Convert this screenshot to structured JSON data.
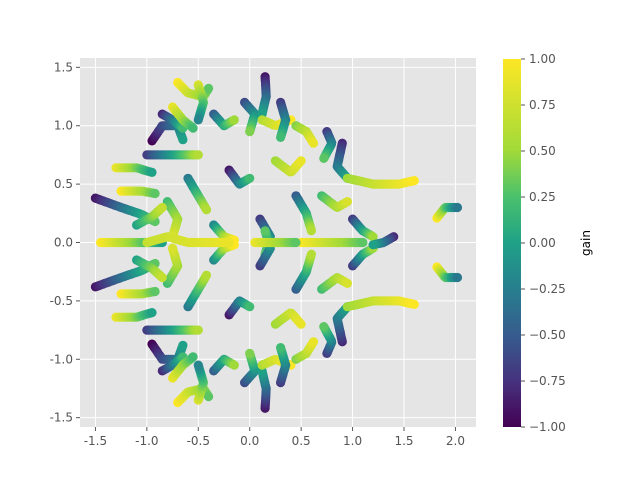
{
  "chart_data": {
    "type": "scatter",
    "title": "",
    "xlabel": "",
    "ylabel": "",
    "xlim": [
      -1.65,
      2.2
    ],
    "ylim": [
      -1.58,
      1.58
    ],
    "grid": true,
    "style": "ggplot",
    "x_ticks": [
      -1.5,
      -1.0,
      -0.5,
      0.0,
      0.5,
      1.0,
      1.5,
      2.0
    ],
    "y_ticks": [
      -1.5,
      -1.0,
      -0.5,
      0.0,
      0.5,
      1.0,
      1.5
    ],
    "colorbar": {
      "label": "gain",
      "range": [
        -1.0,
        1.0
      ],
      "ticks": [
        -1.0,
        -0.75,
        -0.5,
        -0.25,
        0.0,
        0.25,
        0.5,
        0.75,
        1.0
      ],
      "colormap": "viridis"
    },
    "description": "Many short curved strokes of densely packed points; colour encodes gain from -1.00 (dark purple) to 1.00 (yellow).",
    "strokes": [
      {
        "points": [
          [
            -1.5,
            0.38
          ],
          [
            -1.25,
            0.3
          ],
          [
            -1.05,
            0.24
          ],
          [
            -0.92,
            0.18
          ]
        ],
        "gain": [
          -0.9,
          0.3
        ]
      },
      {
        "points": [
          [
            -1.5,
            -0.38
          ],
          [
            -1.25,
            -0.3
          ],
          [
            -1.05,
            -0.24
          ],
          [
            -0.92,
            -0.18
          ]
        ],
        "gain": [
          -0.9,
          0.3
        ]
      },
      {
        "points": [
          [
            -1.45,
            0.0
          ],
          [
            -1.2,
            0.0
          ],
          [
            -1.0,
            0.0
          ],
          [
            -0.85,
            0.0
          ]
        ],
        "gain": [
          1.0,
          0.0
        ]
      },
      {
        "points": [
          [
            -1.3,
            0.64
          ],
          [
            -1.1,
            0.64
          ],
          [
            -0.95,
            0.6
          ]
        ],
        "gain": [
          0.9,
          0.0
        ]
      },
      {
        "points": [
          [
            -1.3,
            -0.64
          ],
          [
            -1.1,
            -0.64
          ],
          [
            -0.95,
            -0.6
          ]
        ],
        "gain": [
          0.9,
          0.0
        ]
      },
      {
        "points": [
          [
            -1.25,
            0.44
          ],
          [
            -1.05,
            0.44
          ],
          [
            -0.92,
            0.42
          ]
        ],
        "gain": [
          1.0,
          0.3
        ]
      },
      {
        "points": [
          [
            -1.25,
            -0.44
          ],
          [
            -1.05,
            -0.44
          ],
          [
            -0.92,
            -0.42
          ]
        ],
        "gain": [
          1.0,
          0.3
        ]
      },
      {
        "points": [
          [
            -1.0,
            0.75
          ],
          [
            -0.75,
            0.75
          ],
          [
            -0.5,
            0.75
          ]
        ],
        "gain": [
          -0.7,
          0.6
        ]
      },
      {
        "points": [
          [
            -1.0,
            -0.75
          ],
          [
            -0.75,
            -0.75
          ],
          [
            -0.5,
            -0.75
          ]
        ],
        "gain": [
          -0.7,
          0.6
        ]
      },
      {
        "points": [
          [
            -0.95,
            0.87
          ],
          [
            -0.85,
            1.0
          ],
          [
            -0.7,
            1.0
          ],
          [
            -0.65,
            0.88
          ]
        ],
        "gain": [
          -1.0,
          0.0
        ]
      },
      {
        "points": [
          [
            -0.95,
            -0.87
          ],
          [
            -0.85,
            -1.0
          ],
          [
            -0.7,
            -1.0
          ],
          [
            -0.65,
            -0.88
          ]
        ],
        "gain": [
          -1.0,
          0.0
        ]
      },
      {
        "points": [
          [
            -0.85,
            1.1
          ],
          [
            -0.75,
            1.05
          ],
          [
            -0.65,
            0.98
          ]
        ],
        "gain": [
          -0.8,
          0.2
        ]
      },
      {
        "points": [
          [
            -0.85,
            -1.1
          ],
          [
            -0.75,
            -1.05
          ],
          [
            -0.65,
            -0.98
          ]
        ],
        "gain": [
          -0.8,
          0.2
        ]
      },
      {
        "points": [
          [
            -0.7,
            1.37
          ],
          [
            -0.6,
            1.28
          ],
          [
            -0.45,
            1.25
          ],
          [
            -0.4,
            1.32
          ]
        ],
        "gain": [
          1.0,
          0.3
        ]
      },
      {
        "points": [
          [
            -0.7,
            -1.37
          ],
          [
            -0.6,
            -1.28
          ],
          [
            -0.45,
            -1.25
          ],
          [
            -0.4,
            -1.32
          ]
        ],
        "gain": [
          1.0,
          0.3
        ]
      },
      {
        "points": [
          [
            -0.75,
            1.16
          ],
          [
            -0.65,
            1.05
          ],
          [
            -0.55,
            0.98
          ]
        ],
        "gain": [
          0.9,
          0.2
        ]
      },
      {
        "points": [
          [
            -0.75,
            -1.16
          ],
          [
            -0.65,
            -1.05
          ],
          [
            -0.55,
            -0.98
          ]
        ],
        "gain": [
          0.9,
          0.2
        ]
      },
      {
        "points": [
          [
            -0.5,
            1.35
          ],
          [
            -0.45,
            1.2
          ],
          [
            -0.5,
            1.05
          ]
        ],
        "gain": [
          0.8,
          -0.2
        ]
      },
      {
        "points": [
          [
            -0.5,
            -1.35
          ],
          [
            -0.45,
            -1.2
          ],
          [
            -0.5,
            -1.05
          ]
        ],
        "gain": [
          0.8,
          -0.2
        ]
      },
      {
        "points": [
          [
            -0.35,
            1.1
          ],
          [
            -0.25,
            1.0
          ],
          [
            -0.15,
            1.05
          ]
        ],
        "gain": [
          -0.5,
          0.5
        ]
      },
      {
        "points": [
          [
            -0.35,
            -1.1
          ],
          [
            -0.25,
            -1.0
          ],
          [
            -0.15,
            -1.05
          ]
        ],
        "gain": [
          -0.5,
          0.5
        ]
      },
      {
        "points": [
          [
            -0.05,
            1.2
          ],
          [
            0.05,
            1.1
          ],
          [
            0.0,
            0.95
          ]
        ],
        "gain": [
          -0.6,
          0.4
        ]
      },
      {
        "points": [
          [
            -0.05,
            -1.2
          ],
          [
            0.05,
            -1.1
          ],
          [
            0.0,
            -0.95
          ]
        ],
        "gain": [
          -0.6,
          0.4
        ]
      },
      {
        "points": [
          [
            0.15,
            1.42
          ],
          [
            0.16,
            1.25
          ],
          [
            0.12,
            1.1
          ]
        ],
        "gain": [
          -0.9,
          0.0
        ]
      },
      {
        "points": [
          [
            0.15,
            -1.42
          ],
          [
            0.16,
            -1.25
          ],
          [
            0.12,
            -1.1
          ]
        ],
        "gain": [
          -0.9,
          0.0
        ]
      },
      {
        "points": [
          [
            0.12,
            1.05
          ],
          [
            0.25,
            1.0
          ],
          [
            0.4,
            1.05
          ]
        ],
        "gain": [
          0.6,
          1.0
        ]
      },
      {
        "points": [
          [
            0.12,
            -1.05
          ],
          [
            0.25,
            -1.0
          ],
          [
            0.4,
            -1.05
          ]
        ],
        "gain": [
          0.6,
          1.0
        ]
      },
      {
        "points": [
          [
            0.3,
            1.2
          ],
          [
            0.35,
            1.05
          ],
          [
            0.3,
            0.9
          ]
        ],
        "gain": [
          -0.7,
          0.2
        ]
      },
      {
        "points": [
          [
            0.3,
            -1.2
          ],
          [
            0.35,
            -1.05
          ],
          [
            0.3,
            -0.9
          ]
        ],
        "gain": [
          -0.7,
          0.2
        ]
      },
      {
        "points": [
          [
            0.45,
            1.0
          ],
          [
            0.55,
            0.95
          ],
          [
            0.62,
            0.85
          ]
        ],
        "gain": [
          0.4,
          0.9
        ]
      },
      {
        "points": [
          [
            0.45,
            -1.0
          ],
          [
            0.55,
            -0.95
          ],
          [
            0.62,
            -0.85
          ]
        ],
        "gain": [
          0.4,
          0.9
        ]
      },
      {
        "points": [
          [
            0.75,
            0.95
          ],
          [
            0.8,
            0.85
          ],
          [
            0.72,
            0.72
          ]
        ],
        "gain": [
          -0.7,
          0.3
        ]
      },
      {
        "points": [
          [
            0.75,
            -0.95
          ],
          [
            0.8,
            -0.85
          ],
          [
            0.72,
            -0.72
          ]
        ],
        "gain": [
          -0.7,
          0.3
        ]
      },
      {
        "points": [
          [
            0.9,
            0.85
          ],
          [
            0.85,
            0.65
          ],
          [
            0.95,
            0.55
          ]
        ],
        "gain": [
          -0.8,
          0.0
        ]
      },
      {
        "points": [
          [
            0.9,
            -0.85
          ],
          [
            0.85,
            -0.65
          ],
          [
            0.95,
            -0.55
          ]
        ],
        "gain": [
          -0.8,
          0.0
        ]
      },
      {
        "points": [
          [
            0.95,
            0.55
          ],
          [
            1.2,
            0.5
          ],
          [
            1.45,
            0.5
          ],
          [
            1.6,
            0.53
          ]
        ],
        "gain": [
          0.5,
          1.0
        ]
      },
      {
        "points": [
          [
            0.95,
            -0.55
          ],
          [
            1.2,
            -0.5
          ],
          [
            1.45,
            -0.5
          ],
          [
            1.6,
            -0.53
          ]
        ],
        "gain": [
          0.5,
          1.0
        ]
      },
      {
        "points": [
          [
            1.0,
            0.2
          ],
          [
            1.1,
            0.1
          ],
          [
            1.2,
            0.05
          ]
        ],
        "gain": [
          -0.7,
          0.5
        ]
      },
      {
        "points": [
          [
            1.0,
            -0.2
          ],
          [
            1.1,
            -0.1
          ],
          [
            1.2,
            -0.05
          ]
        ],
        "gain": [
          -0.7,
          0.5
        ]
      },
      {
        "points": [
          [
            1.4,
            0.05
          ],
          [
            1.3,
            0.0
          ],
          [
            1.2,
            -0.02
          ]
        ],
        "gain": [
          -0.8,
          0.0
        ]
      },
      {
        "points": [
          [
            0.5,
            0.0
          ],
          [
            0.7,
            0.0
          ],
          [
            0.9,
            0.0
          ],
          [
            1.1,
            0.0
          ]
        ],
        "gain": [
          1.0,
          0.3
        ]
      },
      {
        "points": [
          [
            1.82,
            0.21
          ],
          [
            1.9,
            0.3
          ],
          [
            2.02,
            0.3
          ]
        ],
        "gain": [
          1.0,
          -0.3
        ]
      },
      {
        "points": [
          [
            1.82,
            -0.21
          ],
          [
            1.9,
            -0.3
          ],
          [
            2.02,
            -0.3
          ]
        ],
        "gain": [
          1.0,
          -0.3
        ]
      },
      {
        "points": [
          [
            -0.8,
            0.35
          ],
          [
            -0.7,
            0.2
          ],
          [
            -0.75,
            0.05
          ]
        ],
        "gain": [
          0.2,
          0.8
        ]
      },
      {
        "points": [
          [
            -0.8,
            -0.35
          ],
          [
            -0.7,
            -0.2
          ],
          [
            -0.75,
            -0.05
          ]
        ],
        "gain": [
          0.2,
          0.8
        ]
      },
      {
        "points": [
          [
            -0.6,
            0.55
          ],
          [
            -0.5,
            0.4
          ],
          [
            -0.42,
            0.28
          ]
        ],
        "gain": [
          -0.3,
          0.6
        ]
      },
      {
        "points": [
          [
            -0.6,
            -0.55
          ],
          [
            -0.5,
            -0.4
          ],
          [
            -0.42,
            -0.28
          ]
        ],
        "gain": [
          -0.3,
          0.6
        ]
      },
      {
        "points": [
          [
            -0.35,
            0.15
          ],
          [
            -0.25,
            0.05
          ],
          [
            -0.15,
            0.02
          ]
        ],
        "gain": [
          -0.2,
          1.0
        ]
      },
      {
        "points": [
          [
            -0.35,
            -0.15
          ],
          [
            -0.25,
            -0.05
          ],
          [
            -0.15,
            -0.02
          ]
        ],
        "gain": [
          -0.2,
          1.0
        ]
      },
      {
        "points": [
          [
            -0.2,
            0.62
          ],
          [
            -0.1,
            0.5
          ],
          [
            0.0,
            0.55
          ]
        ],
        "gain": [
          -0.9,
          0.2
        ]
      },
      {
        "points": [
          [
            -0.2,
            -0.62
          ],
          [
            -0.1,
            -0.5
          ],
          [
            0.0,
            -0.55
          ]
        ],
        "gain": [
          -0.9,
          0.2
        ]
      },
      {
        "points": [
          [
            0.1,
            0.2
          ],
          [
            0.2,
            0.05
          ],
          [
            0.15,
            -0.1
          ]
        ],
        "gain": [
          -0.7,
          0.3
        ]
      },
      {
        "points": [
          [
            0.1,
            -0.2
          ],
          [
            0.2,
            -0.05
          ],
          [
            0.15,
            0.1
          ]
        ],
        "gain": [
          -0.7,
          0.3
        ]
      },
      {
        "points": [
          [
            0.25,
            0.7
          ],
          [
            0.4,
            0.6
          ],
          [
            0.5,
            0.7
          ]
        ],
        "gain": [
          0.5,
          0.9
        ]
      },
      {
        "points": [
          [
            0.25,
            -0.7
          ],
          [
            0.4,
            -0.6
          ],
          [
            0.5,
            -0.7
          ]
        ],
        "gain": [
          0.5,
          0.9
        ]
      },
      {
        "points": [
          [
            0.45,
            0.4
          ],
          [
            0.55,
            0.25
          ],
          [
            0.6,
            0.1
          ]
        ],
        "gain": [
          -0.5,
          0.6
        ]
      },
      {
        "points": [
          [
            0.45,
            -0.4
          ],
          [
            0.55,
            -0.25
          ],
          [
            0.6,
            -0.1
          ]
        ],
        "gain": [
          -0.5,
          0.6
        ]
      },
      {
        "points": [
          [
            0.7,
            0.4
          ],
          [
            0.85,
            0.3
          ],
          [
            0.95,
            0.35
          ]
        ],
        "gain": [
          0.2,
          0.8
        ]
      },
      {
        "points": [
          [
            0.7,
            -0.4
          ],
          [
            0.85,
            -0.3
          ],
          [
            0.95,
            -0.35
          ]
        ],
        "gain": [
          0.2,
          0.8
        ]
      },
      {
        "points": [
          [
            -1.0,
            0.0
          ],
          [
            -0.8,
            0.05
          ],
          [
            -0.6,
            0.0
          ],
          [
            -0.4,
            0.0
          ],
          [
            -0.2,
            0.0
          ]
        ],
        "gain": [
          0.7,
          0.9
        ]
      },
      {
        "points": [
          [
            0.05,
            0.0
          ],
          [
            0.25,
            0.0
          ],
          [
            0.45,
            0.0
          ]
        ],
        "gain": [
          0.9,
          0.3
        ]
      },
      {
        "points": [
          [
            -1.1,
            0.15
          ],
          [
            -0.95,
            0.22
          ],
          [
            -0.85,
            0.3
          ]
        ],
        "gain": [
          0.0,
          0.7
        ]
      },
      {
        "points": [
          [
            -1.1,
            -0.15
          ],
          [
            -0.95,
            -0.22
          ],
          [
            -0.85,
            -0.3
          ]
        ],
        "gain": [
          0.0,
          0.7
        ]
      }
    ]
  }
}
